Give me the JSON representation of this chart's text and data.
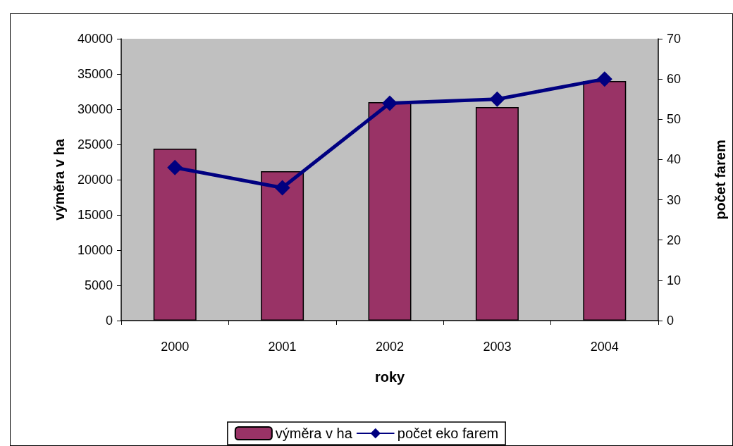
{
  "chart_data": {
    "type": "bar",
    "categories": [
      "2000",
      "2001",
      "2002",
      "2003",
      "2004"
    ],
    "xlabel": "roky",
    "ylabel": "výměra v ha",
    "y2label": "počet farem",
    "series": [
      {
        "name": "výměra v ha",
        "color": "#993366",
        "values": [
          24400,
          21200,
          31000,
          30300,
          34000
        ]
      },
      {
        "name": "počet eko farem",
        "type": "line",
        "axis": "y2",
        "color": "#000080",
        "values": [
          38,
          33,
          54,
          55,
          60
        ]
      }
    ],
    "ylim": [
      0,
      40000
    ],
    "yticks": [
      0,
      5000,
      10000,
      15000,
      20000,
      25000,
      30000,
      35000,
      40000
    ],
    "y2lim": [
      0,
      70
    ],
    "y2ticks": [
      0,
      10,
      20,
      30,
      40,
      50,
      60,
      70
    ],
    "grid": false,
    "legend": "bottom",
    "marker": "diamond",
    "line_style": "solid"
  }
}
